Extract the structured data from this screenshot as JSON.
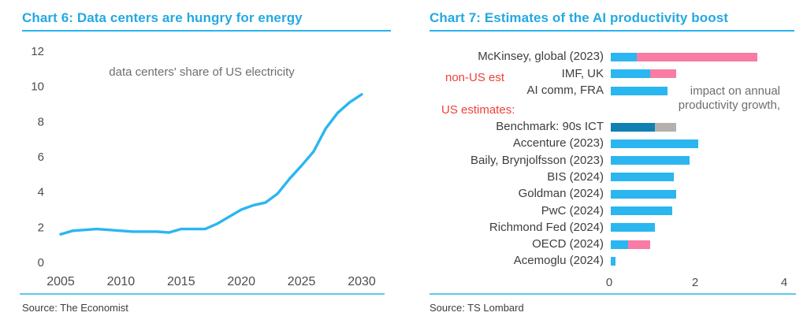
{
  "colors": {
    "title_cyan": "#23a9e1",
    "cyan": "#2bb6f0",
    "pink": "#f87ca4",
    "darkblue": "#1080b2",
    "gray": "#b3b0ae",
    "red": "#f04137",
    "text_dark": "#3d3d3d",
    "text_gray": "#6e6e6e",
    "axis_text": "#4d4d4d",
    "rule_cyan": "#5ec7f2"
  },
  "chart6": {
    "title": "Chart 6: Data centers are hungry for energy",
    "subtitle": "data centers' share of US electricity",
    "source": "Source: The Economist"
  },
  "chart7": {
    "title": "Chart 7: Estimates of the AI productivity boost",
    "source": "Source: TS Lombard",
    "non_us_label": "non-US est",
    "us_label": "US estimates:",
    "annotation_line1": "impact on annual",
    "annotation_line2": "productivity growth,"
  },
  "chart_data": [
    {
      "type": "line",
      "title": "Chart 6: Data centers are hungry for energy",
      "subtitle": "data centers' share of US electricity",
      "source": "Source: The Economist",
      "xlabel": "",
      "ylabel": "",
      "grid": false,
      "line_color_key": "cyan",
      "xlim": [
        2005,
        2030
      ],
      "ylim": [
        0,
        12
      ],
      "xticks": [
        2005,
        2010,
        2015,
        2020,
        2025,
        2030
      ],
      "yticks": [
        0,
        2,
        4,
        6,
        8,
        10,
        12
      ],
      "x": [
        2005,
        2006,
        2007,
        2008,
        2009,
        2010,
        2011,
        2012,
        2013,
        2014,
        2015,
        2016,
        2017,
        2018,
        2019,
        2020,
        2021,
        2022,
        2023,
        2024,
        2025,
        2026,
        2027,
        2028,
        2029,
        2030
      ],
      "y": [
        1.6,
        1.8,
        1.85,
        1.9,
        1.85,
        1.8,
        1.75,
        1.75,
        1.75,
        1.7,
        1.9,
        1.9,
        1.9,
        2.2,
        2.6,
        3.0,
        3.25,
        3.4,
        3.9,
        4.75,
        5.5,
        6.3,
        7.6,
        8.5,
        9.1,
        9.55
      ]
    },
    {
      "type": "bar",
      "orientation": "horizontal",
      "title": "Chart 7: Estimates of the AI productivity boost",
      "source": "Source: TS Lombard",
      "annotation": "impact on annual productivity growth,",
      "xlim": [
        0,
        4.5
      ],
      "xticks": [
        0,
        2,
        4
      ],
      "group_labels": {
        "non_us": "non-US est",
        "us": "US estimates:"
      },
      "bars": [
        {
          "label": "McKinsey, global (2023)",
          "group": "non-US",
          "segments": [
            {
              "value": 0.6,
              "color": "cyan"
            },
            {
              "value": 2.75,
              "color": "pink"
            }
          ]
        },
        {
          "label": "IMF, UK",
          "group": "non-US",
          "segments": [
            {
              "value": 0.9,
              "color": "cyan"
            },
            {
              "value": 0.6,
              "color": "pink"
            }
          ]
        },
        {
          "label": "AI comm, FRA",
          "group": "non-US",
          "segments": [
            {
              "value": 1.3,
              "color": "cyan"
            }
          ]
        },
        {
          "label": "Benchmark: 90s ICT",
          "group": "US",
          "segments": [
            {
              "value": 1.0,
              "color": "darkblue"
            },
            {
              "value": 0.5,
              "color": "gray"
            }
          ]
        },
        {
          "label": "Accenture (2023)",
          "group": "US",
          "segments": [
            {
              "value": 2.0,
              "color": "cyan"
            }
          ]
        },
        {
          "label": "Baily, Brynjolfsson (2023)",
          "group": "US",
          "segments": [
            {
              "value": 1.8,
              "color": "cyan"
            }
          ]
        },
        {
          "label": "BIS (2024)",
          "group": "US",
          "segments": [
            {
              "value": 1.45,
              "color": "cyan"
            }
          ]
        },
        {
          "label": "Goldman (2024)",
          "group": "US",
          "segments": [
            {
              "value": 1.5,
              "color": "cyan"
            }
          ]
        },
        {
          "label": "PwC (2024)",
          "group": "US",
          "segments": [
            {
              "value": 1.4,
              "color": "cyan"
            }
          ]
        },
        {
          "label": "Richmond Fed (2024)",
          "group": "US",
          "segments": [
            {
              "value": 1.0,
              "color": "cyan"
            }
          ]
        },
        {
          "label": "OECD (2024)",
          "group": "US",
          "segments": [
            {
              "value": 0.4,
              "color": "cyan"
            },
            {
              "value": 0.5,
              "color": "pink"
            }
          ]
        },
        {
          "label": "Acemoglu (2024)",
          "group": "US",
          "segments": [
            {
              "value": 0.1,
              "color": "cyan"
            }
          ]
        }
      ]
    }
  ]
}
